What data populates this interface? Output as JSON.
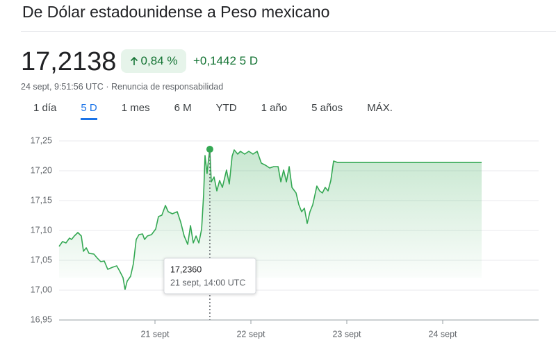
{
  "header": {
    "title": "De Dólar estadounidense a Peso mexicano",
    "price": "17,2138",
    "change_pct": "0,84 %",
    "change_abs": "+0,1442",
    "period": "5 D",
    "timestamp": "24 sept, 9:51:56 UTC",
    "separator": "·",
    "disclaimer": "Renuncia de responsabilidad"
  },
  "tabs": {
    "items": [
      "1 día",
      "5 D",
      "1 mes",
      "6 M",
      "YTD",
      "1 año",
      "5 años",
      "MÁX."
    ],
    "selected": 1
  },
  "chart_data": {
    "type": "line",
    "color": "#34a853",
    "x": [
      20.0,
      20.036,
      20.072,
      20.109,
      20.13,
      20.159,
      20.196,
      20.232,
      20.254,
      20.283,
      20.312,
      20.362,
      20.399,
      20.435,
      20.471,
      20.507,
      20.558,
      20.601,
      20.63,
      20.667,
      20.688,
      20.71,
      20.746,
      20.775,
      20.804,
      20.833,
      20.87,
      20.891,
      20.92,
      20.964,
      21.007,
      21.036,
      21.072,
      21.109,
      21.138,
      21.181,
      21.232,
      21.268,
      21.304,
      21.341,
      21.37,
      21.399,
      21.428,
      21.457,
      21.486,
      21.507,
      21.522,
      21.543,
      21.558,
      21.572,
      21.587,
      21.616,
      21.645,
      21.674,
      21.703,
      21.746,
      21.775,
      21.804,
      21.826,
      21.862,
      21.891,
      21.935,
      21.978,
      22.022,
      22.065,
      22.109,
      22.152,
      22.196,
      22.239,
      22.283,
      22.312,
      22.341,
      22.37,
      22.399,
      22.428,
      22.471,
      22.5,
      22.529,
      22.558,
      22.587,
      22.616,
      22.645,
      22.688,
      22.717,
      22.746,
      22.775,
      22.804,
      22.833,
      22.862,
      22.906,
      24.406
    ],
    "values": [
      17.0733,
      17.0814,
      17.0791,
      17.0872,
      17.0849,
      17.0907,
      17.0965,
      17.0907,
      17.0651,
      17.0709,
      17.0616,
      17.0605,
      17.0535,
      17.0477,
      17.0488,
      17.0349,
      17.0384,
      17.0407,
      17.0326,
      17.0209,
      17.0012,
      17.0151,
      17.0233,
      17.0442,
      17.0849,
      17.093,
      17.0942,
      17.0849,
      17.0907,
      17.093,
      17.1023,
      17.1233,
      17.1256,
      17.1419,
      17.1314,
      17.1279,
      17.1314,
      17.114,
      17.0907,
      17.0767,
      17.1081,
      17.0791,
      17.0907,
      17.0791,
      17.1023,
      17.1605,
      17.2256,
      17.1953,
      17.2186,
      17.236,
      17.1814,
      17.1895,
      17.1663,
      17.1837,
      17.1721,
      17.2012,
      17.1779,
      17.2244,
      17.2349,
      17.2279,
      17.2326,
      17.2279,
      17.2326,
      17.2279,
      17.2326,
      17.2128,
      17.2093,
      17.2047,
      17.207,
      17.207,
      17.1814,
      17.2012,
      17.1814,
      17.207,
      17.1721,
      17.1628,
      17.143,
      17.1314,
      17.1372,
      17.1116,
      17.1314,
      17.143,
      17.1744,
      17.1663,
      17.1628,
      17.1721,
      17.1663,
      17.1837,
      17.2163,
      17.2138,
      17.2138
    ],
    "xlim": [
      20,
      25
    ],
    "xticks": [
      {
        "value": 21,
        "label": "21 sept"
      },
      {
        "value": 22,
        "label": "22 sept"
      },
      {
        "value": 23,
        "label": "23 sept"
      },
      {
        "value": 24,
        "label": "24 sept"
      }
    ],
    "ylim": [
      16.95,
      17.25
    ],
    "yticks": [
      {
        "value": 16.95,
        "label": "16,95"
      },
      {
        "value": 17.0,
        "label": "17,00"
      },
      {
        "value": 17.05,
        "label": "17,05"
      },
      {
        "value": 17.1,
        "label": "17,10"
      },
      {
        "value": 17.15,
        "label": "17,15"
      },
      {
        "value": 17.2,
        "label": "17,20"
      },
      {
        "value": 17.25,
        "label": "17,25"
      }
    ],
    "grid": true,
    "highlight": {
      "x": 21.572,
      "y": 17.236,
      "label": "17,2360",
      "date": "21 sept, 14:00 UTC"
    }
  }
}
